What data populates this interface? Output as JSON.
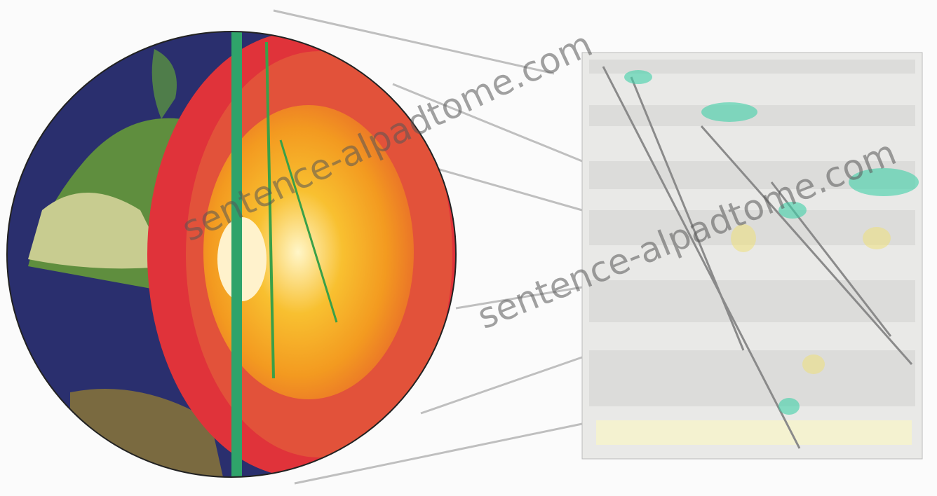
{
  "watermark": "sentence-alpadtome.com"
}
